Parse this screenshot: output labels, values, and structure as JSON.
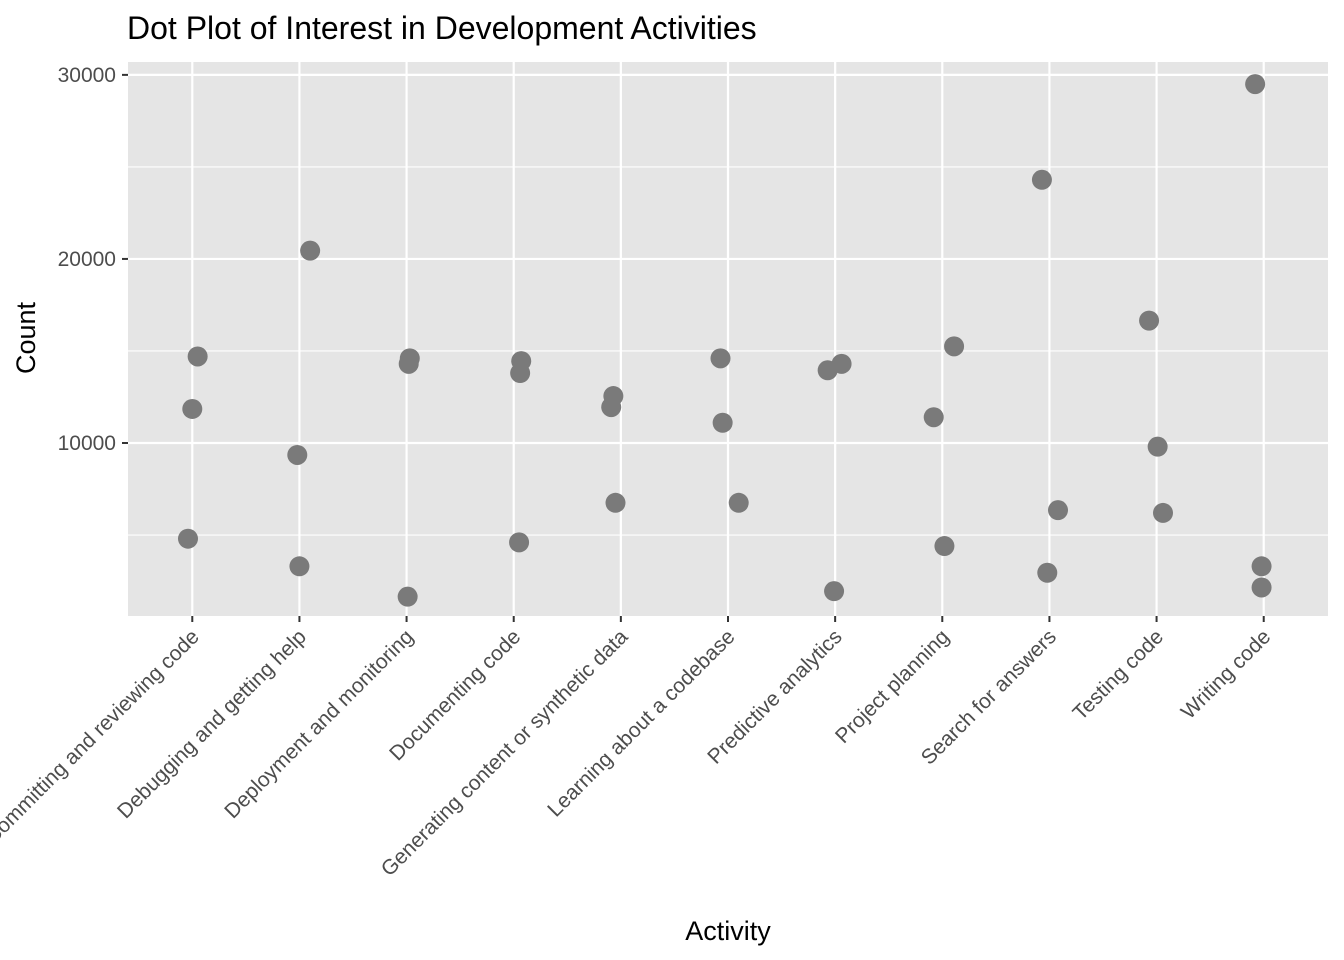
{
  "chart_data": {
    "type": "scatter",
    "title": "Dot Plot of Interest in Development Activities",
    "xlabel": "Activity",
    "ylabel": "Count",
    "categories": [
      "Committing and reviewing code",
      "Debugging and getting help",
      "Deployment and monitoring",
      "Documenting code",
      "Generating content or synthetic data",
      "Learning about a codebase",
      "Predictive analytics",
      "Project planning",
      "Search for answers",
      "Testing code",
      "Writing code"
    ],
    "yticks": [
      10000,
      20000,
      30000
    ],
    "ytick_labels": [
      "10000",
      "20000",
      "30000"
    ],
    "ylim": [
      600,
      30700
    ],
    "grid": true,
    "point_color": "#7a7a7a",
    "panel_color": "#e5e5e5",
    "points": [
      {
        "category": "Committing and reviewing code",
        "jitter": 0.05,
        "y": 14700
      },
      {
        "category": "Committing and reviewing code",
        "jitter": 0.0,
        "y": 11850
      },
      {
        "category": "Committing and reviewing code",
        "jitter": -0.04,
        "y": 4800
      },
      {
        "category": "Debugging and getting help",
        "jitter": 0.1,
        "y": 20450
      },
      {
        "category": "Debugging and getting help",
        "jitter": -0.02,
        "y": 9350
      },
      {
        "category": "Debugging and getting help",
        "jitter": 0.0,
        "y": 3300
      },
      {
        "category": "Deployment and monitoring",
        "jitter": 0.03,
        "y": 14600
      },
      {
        "category": "Deployment and monitoring",
        "jitter": 0.02,
        "y": 14300
      },
      {
        "category": "Deployment and monitoring",
        "jitter": 0.01,
        "y": 1650
      },
      {
        "category": "Documenting code",
        "jitter": 0.07,
        "y": 14450
      },
      {
        "category": "Documenting code",
        "jitter": 0.06,
        "y": 13800
      },
      {
        "category": "Documenting code",
        "jitter": 0.05,
        "y": 4600
      },
      {
        "category": "Generating content or synthetic data",
        "jitter": -0.07,
        "y": 12550
      },
      {
        "category": "Generating content or synthetic data",
        "jitter": -0.09,
        "y": 11950
      },
      {
        "category": "Generating content or synthetic data",
        "jitter": -0.05,
        "y": 6750
      },
      {
        "category": "Learning about a codebase",
        "jitter": -0.07,
        "y": 14600
      },
      {
        "category": "Learning about a codebase",
        "jitter": -0.05,
        "y": 11100
      },
      {
        "category": "Learning about a codebase",
        "jitter": 0.1,
        "y": 6750
      },
      {
        "category": "Predictive analytics",
        "jitter": -0.07,
        "y": 13950
      },
      {
        "category": "Predictive analytics",
        "jitter": 0.06,
        "y": 14300
      },
      {
        "category": "Predictive analytics",
        "jitter": -0.01,
        "y": 1950
      },
      {
        "category": "Project planning",
        "jitter": 0.11,
        "y": 15250
      },
      {
        "category": "Project planning",
        "jitter": -0.08,
        "y": 11400
      },
      {
        "category": "Project planning",
        "jitter": 0.02,
        "y": 4400
      },
      {
        "category": "Search for answers",
        "jitter": -0.07,
        "y": 24300
      },
      {
        "category": "Search for answers",
        "jitter": 0.08,
        "y": 6350
      },
      {
        "category": "Search for answers",
        "jitter": -0.02,
        "y": 2950
      },
      {
        "category": "Testing code",
        "jitter": -0.07,
        "y": 16650
      },
      {
        "category": "Testing code",
        "jitter": 0.01,
        "y": 9800
      },
      {
        "category": "Testing code",
        "jitter": 0.06,
        "y": 6200
      },
      {
        "category": "Writing code",
        "jitter": -0.08,
        "y": 29500
      },
      {
        "category": "Writing code",
        "jitter": -0.02,
        "y": 3300
      },
      {
        "category": "Writing code",
        "jitter": -0.02,
        "y": 2150
      }
    ]
  }
}
